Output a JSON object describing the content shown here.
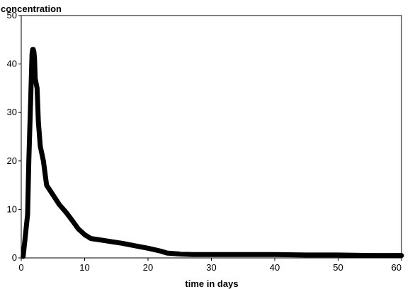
{
  "chart_data": {
    "type": "line",
    "title": "",
    "xlabel": "time in days",
    "ylabel": "concentration",
    "xlim": [
      0,
      60
    ],
    "ylim": [
      0,
      50
    ],
    "x_ticks": [
      0,
      10,
      20,
      30,
      40,
      50,
      60
    ],
    "y_ticks": [
      0,
      10,
      20,
      30,
      40,
      50
    ],
    "grid": false,
    "legend": "none",
    "line_color": "#000000",
    "series": [
      {
        "x": [
          0.3,
          0.6,
          1.0,
          1.2,
          1.5,
          1.7,
          1.8,
          1.9,
          2.0,
          2.1,
          2.2,
          2.5,
          2.7,
          3.0,
          3.5,
          4.0,
          5.0,
          6.0,
          7.0,
          8.0,
          9.0,
          10.0,
          11.0,
          12.0,
          14.0,
          16.0,
          18.0,
          20.0,
          21.0,
          22.0,
          23.0,
          25.0,
          27.0,
          30.0,
          35.0,
          40.0,
          45.0,
          50.0,
          55.0,
          60.0
        ],
        "y": [
          0.3,
          4.0,
          9.0,
          20.0,
          33.0,
          42.0,
          43.0,
          43.0,
          42.5,
          41.0,
          37.0,
          35.0,
          28.0,
          23.0,
          20.0,
          15.0,
          13.0,
          11.0,
          9.5,
          7.8,
          6.0,
          4.8,
          4.0,
          3.8,
          3.4,
          3.0,
          2.5,
          2.0,
          1.7,
          1.4,
          1.0,
          0.8,
          0.7,
          0.7,
          0.7,
          0.7,
          0.6,
          0.6,
          0.5,
          0.5
        ]
      }
    ]
  }
}
